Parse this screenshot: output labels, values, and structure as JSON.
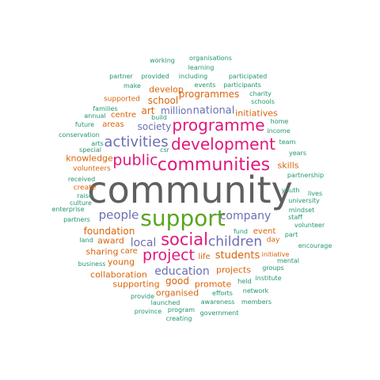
{
  "palette": {
    "gray": "#5f5f5f",
    "green": "#5aa51f",
    "pink": "#e0177b",
    "purple": "#6a6fb3",
    "orange": "#d9640b",
    "teal": "#23966f"
  },
  "words": [
    {
      "text": "community",
      "color": "gray"
    },
    {
      "text": "support",
      "color": "green"
    },
    {
      "text": "communities",
      "color": "pink"
    },
    {
      "text": "development",
      "color": "pink"
    },
    {
      "text": "programme",
      "color": "pink"
    },
    {
      "text": "social",
      "color": "pink"
    },
    {
      "text": "project",
      "color": "pink"
    },
    {
      "text": "public",
      "color": "pink"
    },
    {
      "text": "activities",
      "color": "purple"
    },
    {
      "text": "children",
      "color": "purple"
    },
    {
      "text": "people",
      "color": "purple"
    },
    {
      "text": "company",
      "color": "purple"
    },
    {
      "text": "education",
      "color": "purple"
    },
    {
      "text": "local",
      "color": "purple"
    },
    {
      "text": "students",
      "color": "orange"
    },
    {
      "text": "national",
      "color": "purple"
    },
    {
      "text": "society",
      "color": "purple"
    },
    {
      "text": "million",
      "color": "purple"
    },
    {
      "text": "school",
      "color": "orange"
    },
    {
      "text": "programmes",
      "color": "orange"
    },
    {
      "text": "art",
      "color": "orange"
    },
    {
      "text": "good",
      "color": "orange"
    },
    {
      "text": "foundation",
      "color": "orange"
    },
    {
      "text": "develop",
      "color": "orange"
    },
    {
      "text": "initiatives",
      "color": "orange"
    },
    {
      "text": "skills",
      "color": "orange"
    },
    {
      "text": "knowledge",
      "color": "orange"
    },
    {
      "text": "collaboration",
      "color": "orange"
    },
    {
      "text": "supporting",
      "color": "orange"
    },
    {
      "text": "promote",
      "color": "orange"
    },
    {
      "text": "projects",
      "color": "orange"
    },
    {
      "text": "organised",
      "color": "orange"
    },
    {
      "text": "sharing",
      "color": "orange"
    },
    {
      "text": "care",
      "color": "orange"
    },
    {
      "text": "young",
      "color": "orange"
    },
    {
      "text": "award",
      "color": "orange"
    },
    {
      "text": "life",
      "color": "orange"
    },
    {
      "text": "areas",
      "color": "orange"
    },
    {
      "text": "centre",
      "color": "orange"
    },
    {
      "text": "event",
      "color": "orange"
    },
    {
      "text": "volunteers",
      "color": "orange"
    },
    {
      "text": "create",
      "color": "orange"
    },
    {
      "text": "supported",
      "color": "orange"
    },
    {
      "text": "day",
      "color": "orange"
    },
    {
      "text": "initiative",
      "color": "orange"
    },
    {
      "text": "working",
      "color": "teal"
    },
    {
      "text": "organisations",
      "color": "teal"
    },
    {
      "text": "learning",
      "color": "teal"
    },
    {
      "text": "participated",
      "color": "teal"
    },
    {
      "text": "partner",
      "color": "teal"
    },
    {
      "text": "provided",
      "color": "teal"
    },
    {
      "text": "including",
      "color": "teal"
    },
    {
      "text": "make",
      "color": "teal"
    },
    {
      "text": "events",
      "color": "teal"
    },
    {
      "text": "participants",
      "color": "teal"
    },
    {
      "text": "team",
      "color": "teal"
    },
    {
      "text": "charity",
      "color": "teal"
    },
    {
      "text": "schools",
      "color": "teal"
    },
    {
      "text": "families",
      "color": "teal"
    },
    {
      "text": "annual",
      "color": "teal"
    },
    {
      "text": "build",
      "color": "teal"
    },
    {
      "text": "future",
      "color": "teal"
    },
    {
      "text": "home",
      "color": "teal"
    },
    {
      "text": "income",
      "color": "teal"
    },
    {
      "text": "conservation",
      "color": "teal"
    },
    {
      "text": "arts",
      "color": "teal"
    },
    {
      "text": "special",
      "color": "teal"
    },
    {
      "text": "csr",
      "color": "teal"
    },
    {
      "text": "years",
      "color": "teal"
    },
    {
      "text": "partnership",
      "color": "teal"
    },
    {
      "text": "received",
      "color": "teal"
    },
    {
      "text": "raise",
      "color": "teal"
    },
    {
      "text": "culture",
      "color": "teal"
    },
    {
      "text": "enterprise",
      "color": "teal"
    },
    {
      "text": "partners",
      "color": "teal"
    },
    {
      "text": "youth",
      "color": "teal"
    },
    {
      "text": "lives",
      "color": "teal"
    },
    {
      "text": "university",
      "color": "teal"
    },
    {
      "text": "mindset",
      "color": "teal"
    },
    {
      "text": "staff",
      "color": "teal"
    },
    {
      "text": "volunteer",
      "color": "teal"
    },
    {
      "text": "part",
      "color": "teal"
    },
    {
      "text": "encourage",
      "color": "teal"
    },
    {
      "text": "land",
      "color": "teal"
    },
    {
      "text": "fund",
      "color": "teal"
    },
    {
      "text": "mental",
      "color": "teal"
    },
    {
      "text": "business",
      "color": "teal"
    },
    {
      "text": "groups",
      "color": "teal"
    },
    {
      "text": "held",
      "color": "teal"
    },
    {
      "text": "institute",
      "color": "teal"
    },
    {
      "text": "network",
      "color": "teal"
    },
    {
      "text": "provide",
      "color": "teal"
    },
    {
      "text": "efforts",
      "color": "teal"
    },
    {
      "text": "awareness",
      "color": "teal"
    },
    {
      "text": "members",
      "color": "teal"
    },
    {
      "text": "launched",
      "color": "teal"
    },
    {
      "text": "province",
      "color": "teal"
    },
    {
      "text": "program",
      "color": "teal"
    },
    {
      "text": "government",
      "color": "teal"
    },
    {
      "text": "creating",
      "color": "teal"
    }
  ]
}
